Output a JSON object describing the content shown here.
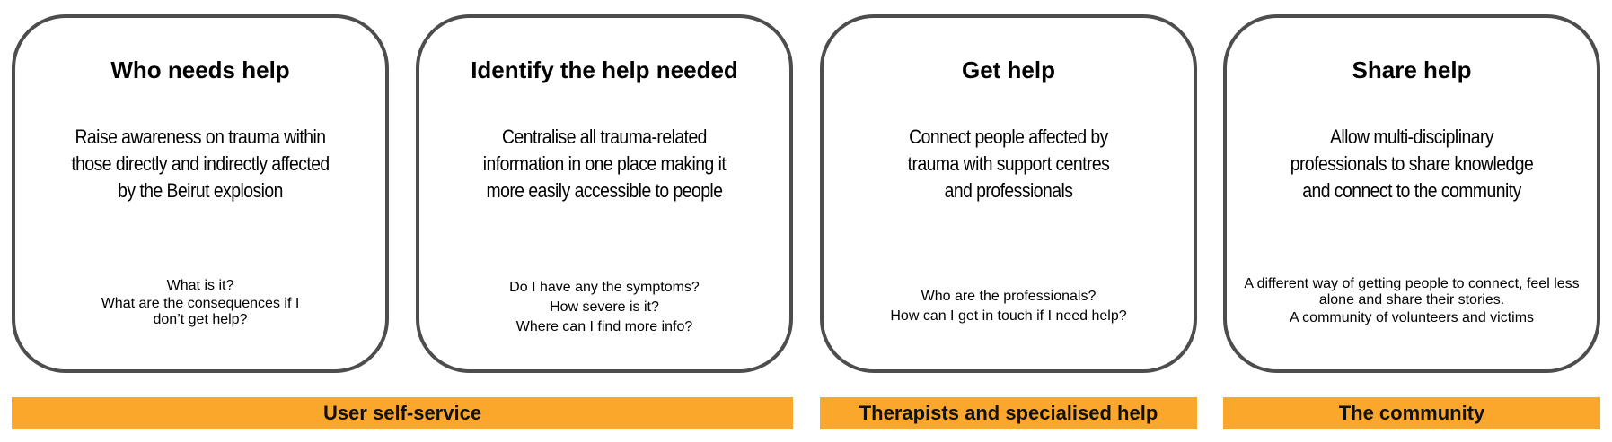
{
  "cards": [
    {
      "title": "Who needs help",
      "description": "Raise awareness on trauma within\nthose directly and indirectly affected\nby the Beirut explosion",
      "questions": [
        "What is it?",
        "What are the consequences if I\ndon’t get help?"
      ]
    },
    {
      "title": "Identify the help needed",
      "description": "Centralise all trauma-related\ninformation in one place making it\nmore easily accessible to people",
      "questions": [
        "Do I have any the symptoms?",
        "How severe is it?",
        "Where can I find more info?"
      ]
    },
    {
      "title": "Get help",
      "description": "Connect people affected by\ntrauma with support centres\nand professionals",
      "questions": [
        "Who are the professionals?",
        "How can I get in touch if I need help?"
      ]
    },
    {
      "title": "Share help",
      "description": "Allow multi-disciplinary\nprofessionals to share knowledge\nand connect to the community",
      "questions": [
        "A different way of getting people to connect, feel less\nalone and share their stories.",
        "A community of volunteers and victims"
      ]
    }
  ],
  "bands": [
    {
      "label": "User self-service"
    },
    {
      "label": "Therapists and specialised help"
    },
    {
      "label": "The community"
    }
  ],
  "colors": {
    "band": "#fba72b",
    "card_border": "#4d4d4d"
  }
}
